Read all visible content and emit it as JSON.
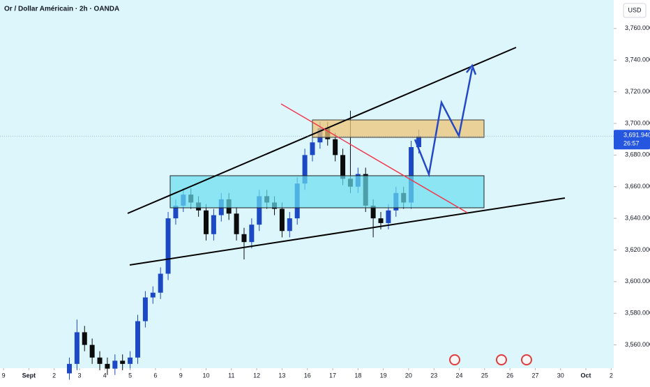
{
  "chart_data": {
    "type": "candlestick",
    "title": "Or / Dollar Américain · 2h · OANDA",
    "currency": "USD",
    "x": [
      2.6,
      2.9,
      3.2,
      3.5,
      3.8,
      4.1,
      4.4,
      4.7,
      5.0,
      5.3,
      5.6,
      5.9,
      6.2,
      6.5,
      6.8,
      7.1,
      7.4,
      7.7,
      8.0,
      8.3,
      8.6,
      8.9,
      9.2,
      9.5,
      9.8,
      10.1,
      10.4,
      10.7,
      11.0,
      11.3,
      11.6,
      11.9,
      12.2,
      12.5,
      12.8,
      13.1,
      13.4,
      13.7,
      14.0,
      14.3,
      14.6,
      14.9,
      15.2,
      15.5,
      15.8,
      16.1,
      16.4
    ],
    "open": [
      3542,
      3548,
      3568,
      3560,
      3552,
      3548,
      3545,
      3550,
      3548,
      3552,
      3575,
      3590,
      3593,
      3605,
      3640,
      3648,
      3655,
      3650,
      3645,
      3630,
      3642,
      3652,
      3643,
      3630,
      3625,
      3636,
      3654,
      3650,
      3646,
      3632,
      3640,
      3662,
      3680,
      3688,
      3697,
      3690,
      3680,
      3665,
      3660,
      3668,
      3648,
      3640,
      3637,
      3645,
      3656,
      3650,
      3685
    ],
    "high": [
      3552,
      3576,
      3572,
      3564,
      3556,
      3552,
      3554,
      3554,
      3556,
      3579,
      3594,
      3597,
      3609,
      3644,
      3652,
      3659,
      3659,
      3654,
      3649,
      3646,
      3656,
      3656,
      3647,
      3634,
      3640,
      3658,
      3658,
      3654,
      3650,
      3644,
      3666,
      3684,
      3692,
      3701,
      3701,
      3694,
      3684,
      3708,
      3672,
      3672,
      3652,
      3644,
      3649,
      3660,
      3660,
      3689,
      3696
    ],
    "low": [
      3538,
      3544,
      3556,
      3548,
      3544,
      3541,
      3541,
      3544,
      3544,
      3548,
      3571,
      3586,
      3589,
      3601,
      3636,
      3644,
      3646,
      3641,
      3626,
      3626,
      3638,
      3639,
      3626,
      3614,
      3621,
      3632,
      3646,
      3642,
      3628,
      3628,
      3636,
      3658,
      3676,
      3684,
      3686,
      3676,
      3661,
      3656,
      3656,
      3644,
      3628,
      3633,
      3633,
      3641,
      3646,
      3646,
      3681
    ],
    "close": [
      3548,
      3568,
      3560,
      3552,
      3548,
      3545,
      3550,
      3548,
      3552,
      3575,
      3590,
      3593,
      3605,
      3640,
      3648,
      3655,
      3650,
      3645,
      3630,
      3642,
      3652,
      3643,
      3630,
      3625,
      3636,
      3654,
      3650,
      3646,
      3632,
      3640,
      3662,
      3680,
      3688,
      3697,
      3690,
      3680,
      3665,
      3660,
      3668,
      3648,
      3640,
      3637,
      3645,
      3656,
      3650,
      3685,
      3692
    ],
    "up_color": "#1c48c4",
    "down_color": "#0b0b0b",
    "ylim": [
      3540,
      3778
    ],
    "xlim": [
      -0.14,
      24.1
    ],
    "yticks": [
      {
        "value": 3560,
        "label": "3,560.000"
      },
      {
        "value": 3580,
        "label": "3,580.000"
      },
      {
        "value": 3600,
        "label": "3,600.000"
      },
      {
        "value": 3620,
        "label": "3,620.000"
      },
      {
        "value": 3640,
        "label": "3,640.000"
      },
      {
        "value": 3660,
        "label": "3,660.000"
      },
      {
        "value": 3680,
        "label": "3,680.000"
      },
      {
        "value": 3700,
        "label": "3,700.000"
      },
      {
        "value": 3720,
        "label": "3,720.000"
      },
      {
        "value": 3740,
        "label": "3,740.000"
      },
      {
        "value": 3760,
        "label": "3,760.000"
      }
    ],
    "xticks": [
      {
        "value": 0,
        "label": "9"
      },
      {
        "value": 1,
        "label": "Sept"
      },
      {
        "value": 2,
        "label": "2"
      },
      {
        "value": 3,
        "label": "3"
      },
      {
        "value": 4,
        "label": "4"
      },
      {
        "value": 5,
        "label": "5"
      },
      {
        "value": 6,
        "label": "6"
      },
      {
        "value": 7,
        "label": "9"
      },
      {
        "value": 8,
        "label": "10"
      },
      {
        "value": 9,
        "label": "11"
      },
      {
        "value": 10,
        "label": "12"
      },
      {
        "value": 11,
        "label": "13"
      },
      {
        "value": 12,
        "label": "16"
      },
      {
        "value": 13,
        "label": "17"
      },
      {
        "value": 14,
        "label": "18"
      },
      {
        "value": 15,
        "label": "19"
      },
      {
        "value": 16,
        "label": "20"
      },
      {
        "value": 17,
        "label": "23"
      },
      {
        "value": 18,
        "label": "24"
      },
      {
        "value": 19,
        "label": "25"
      },
      {
        "value": 20,
        "label": "26"
      },
      {
        "value": 21,
        "label": "27"
      },
      {
        "value": 22,
        "label": "30"
      },
      {
        "value": 23,
        "label": "Oct"
      },
      {
        "value": 24,
        "label": "2"
      }
    ],
    "last_price": {
      "value": 3691.94,
      "label": "3,691.940"
    },
    "countdown": "26:57"
  }
}
